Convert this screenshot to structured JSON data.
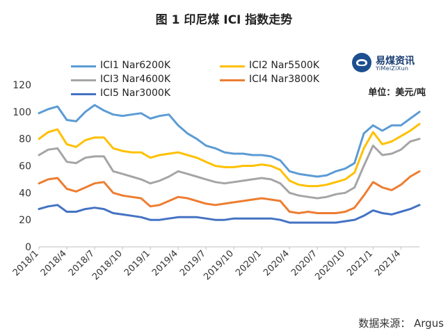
{
  "title": "图 1  印尼煤 ICI 指数走势",
  "unit_label": "单位：美元/吨",
  "source_label": "数据来源：  Argus",
  "logo": {
    "name_cn": "易煤资讯",
    "name_en": "YiMeiZiXun"
  },
  "chart_data": {
    "type": "line",
    "title": "图 1  印尼煤 ICI 指数走势",
    "xlabel": "",
    "ylabel": "",
    "ylim": [
      0,
      120
    ],
    "yticks": [
      0,
      20,
      40,
      60,
      80,
      100,
      120
    ],
    "grid": false,
    "legend_position": "top-left",
    "x_range": [
      "2018-01",
      "2021-06"
    ],
    "x_ticks": [
      "2018/1",
      "2018/4",
      "2018/7",
      "2018/10",
      "2019/1",
      "2019/4",
      "2019/7",
      "2019/10",
      "2020/1",
      "2020/4",
      "2020/7",
      "2020/10",
      "2021/1",
      "2021/4"
    ],
    "x": [
      "2018-01",
      "2018-02",
      "2018-03",
      "2018-04",
      "2018-05",
      "2018-06",
      "2018-07",
      "2018-08",
      "2018-09",
      "2018-10",
      "2018-11",
      "2018-12",
      "2019-01",
      "2019-02",
      "2019-03",
      "2019-04",
      "2019-05",
      "2019-06",
      "2019-07",
      "2019-08",
      "2019-09",
      "2019-10",
      "2019-11",
      "2019-12",
      "2020-01",
      "2020-02",
      "2020-03",
      "2020-04",
      "2020-05",
      "2020-06",
      "2020-07",
      "2020-08",
      "2020-09",
      "2020-10",
      "2020-11",
      "2020-12",
      "2021-01",
      "2021-02",
      "2021-03",
      "2021-04",
      "2021-05",
      "2021-06"
    ],
    "series": [
      {
        "name": "ICI1 Nar6200K",
        "color": "#5b9bd5",
        "values": [
          99,
          102,
          104,
          94,
          93,
          100,
          105,
          101,
          98,
          97,
          98,
          99,
          95,
          97,
          98,
          90,
          84,
          80,
          75,
          73,
          70,
          69,
          69,
          68,
          68,
          67,
          64,
          56,
          54,
          53,
          52,
          53,
          56,
          58,
          62,
          84,
          90,
          86,
          90,
          90,
          95,
          100
        ]
      },
      {
        "name": "ICI2 Nar5500K",
        "color": "#ffc000",
        "values": [
          80,
          85,
          87,
          76,
          74,
          79,
          81,
          81,
          73,
          71,
          70,
          70,
          66,
          68,
          69,
          70,
          68,
          66,
          63,
          60,
          59,
          59,
          60,
          60,
          61,
          60,
          57,
          49,
          46,
          45,
          45,
          46,
          48,
          50,
          55,
          73,
          85,
          76,
          78,
          82,
          86,
          91
        ]
      },
      {
        "name": "ICI3 Nar4600K",
        "color": "#a5a5a5",
        "values": [
          68,
          72,
          73,
          63,
          62,
          66,
          67,
          67,
          56,
          54,
          52,
          50,
          47,
          49,
          52,
          56,
          54,
          52,
          50,
          48,
          47,
          48,
          49,
          50,
          51,
          50,
          47,
          40,
          38,
          37,
          36,
          37,
          39,
          40,
          44,
          60,
          75,
          68,
          69,
          72,
          78,
          80
        ]
      },
      {
        "name": "ICI4 Nar3800K",
        "color": "#ed7d31",
        "values": [
          47,
          50,
          51,
          43,
          41,
          44,
          47,
          48,
          40,
          38,
          37,
          36,
          30,
          31,
          34,
          37,
          36,
          34,
          32,
          31,
          32,
          33,
          34,
          35,
          36,
          35,
          34,
          26,
          25,
          26,
          25,
          25,
          25,
          26,
          29,
          38,
          48,
          44,
          42,
          46,
          52,
          56
        ]
      },
      {
        "name": "ICI5 Nar3000K",
        "color": "#4472c4",
        "values": [
          28,
          30,
          31,
          26,
          26,
          28,
          29,
          28,
          25,
          24,
          23,
          22,
          20,
          20,
          21,
          22,
          22,
          22,
          21,
          20,
          20,
          21,
          21,
          21,
          21,
          21,
          20,
          18,
          18,
          18,
          18,
          18,
          18,
          19,
          20,
          23,
          27,
          25,
          24,
          26,
          28,
          31
        ]
      }
    ]
  }
}
